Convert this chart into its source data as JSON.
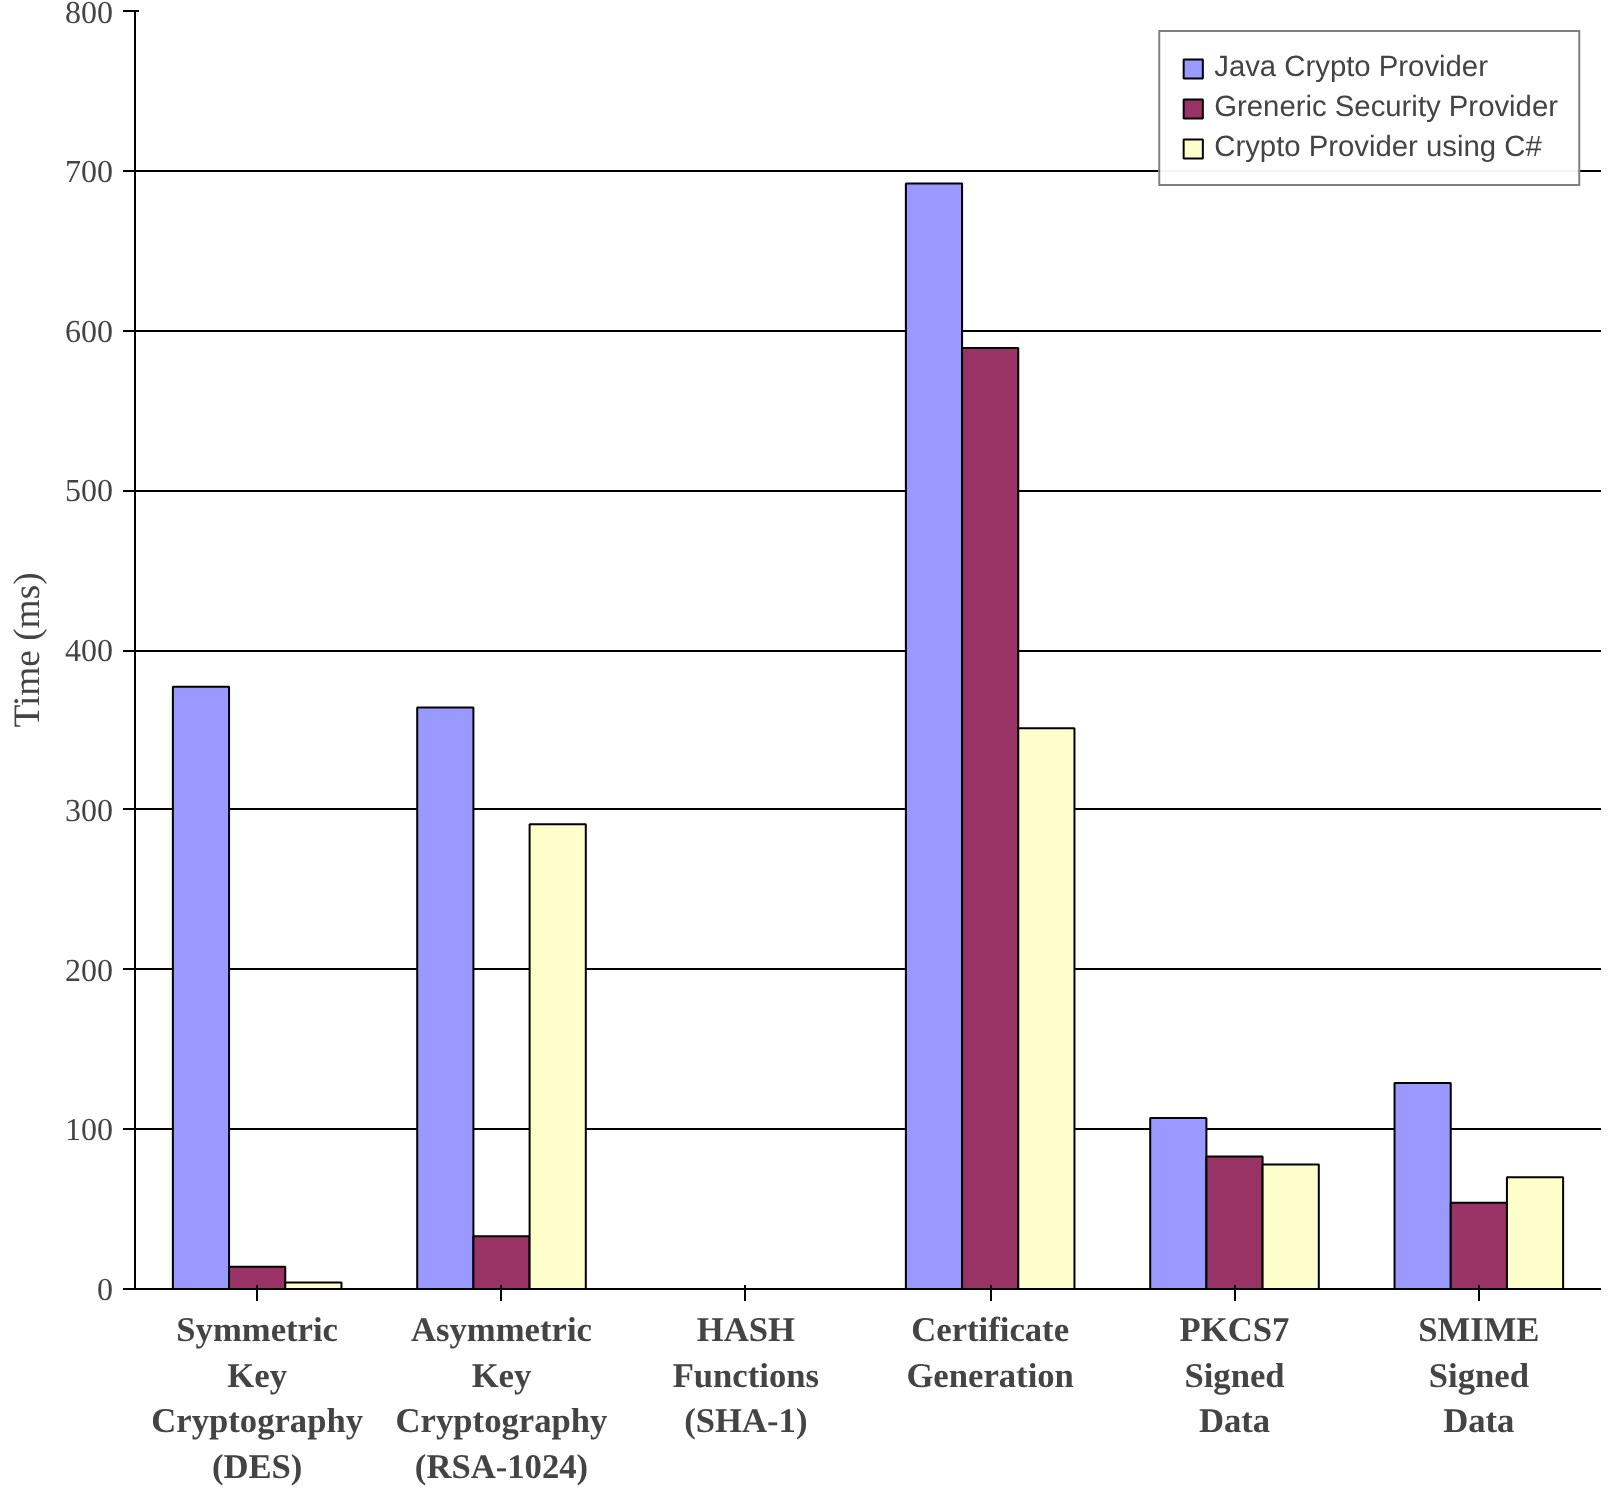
{
  "chart_data": {
    "type": "bar",
    "ylabel": "Time (ms)",
    "categories": [
      "Symmetric Key Cryptography (DES)",
      "Asymmetric Key Cryptography (RSA-1024)",
      "HASH Functions (SHA-1)",
      "Certificate Generation",
      "PKCS7 Signed Data",
      "SMIME Signed Data"
    ],
    "series": [
      {
        "name": "Java Crypto Provider",
        "color": "#9999ff",
        "values": [
          377,
          364,
          null,
          692,
          107,
          129
        ]
      },
      {
        "name": "Greneric Security Provider",
        "color": "#993366",
        "values": [
          14,
          33,
          null,
          589,
          83,
          54
        ]
      },
      {
        "name": "Crypto Provider using C#",
        "color": "#ffffcc",
        "values": [
          4,
          291,
          null,
          351,
          78,
          70
        ]
      }
    ],
    "ylim": [
      0,
      800
    ],
    "yticks": [
      0,
      100,
      200,
      300,
      400,
      500,
      600,
      700,
      800
    ],
    "grid": "y",
    "legend": "top right"
  }
}
